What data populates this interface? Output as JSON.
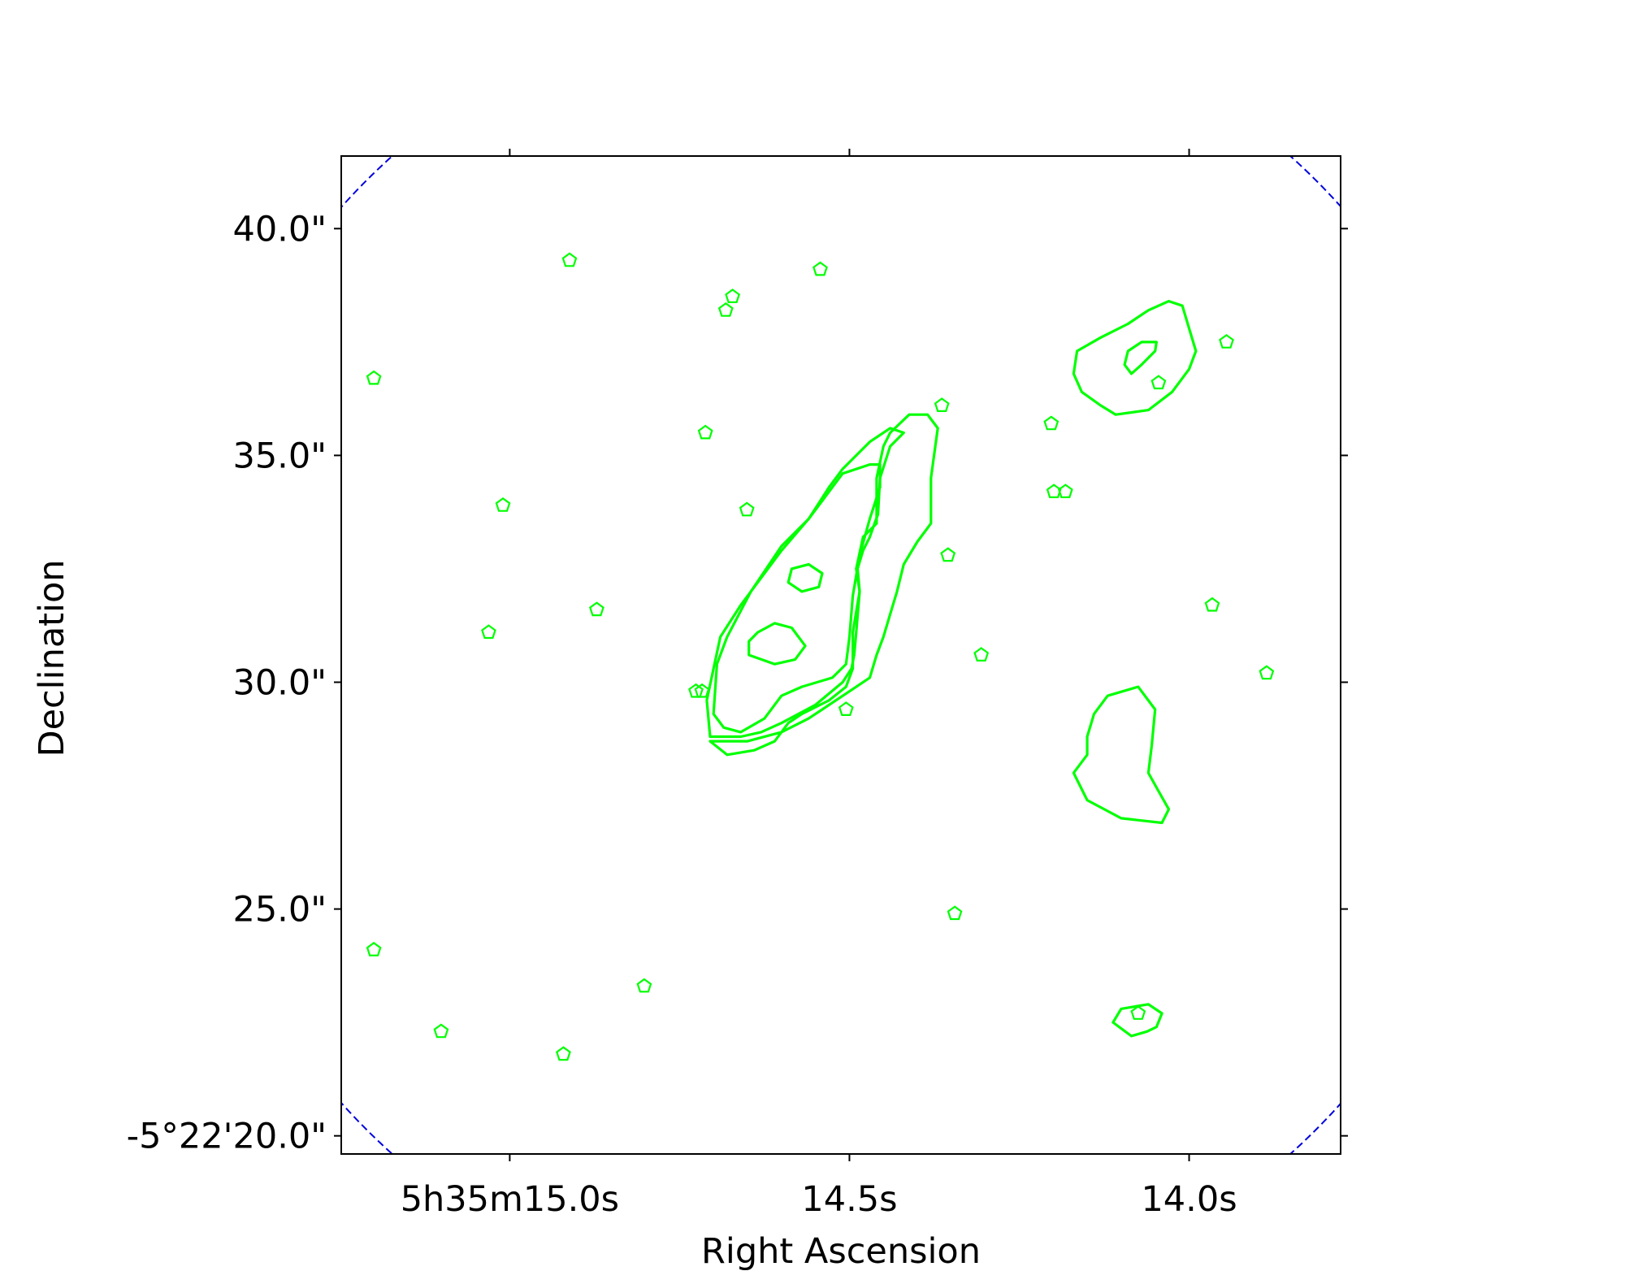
{
  "chart_data": {
    "type": "scatter",
    "xlabel": "Right Ascension",
    "ylabel": "Declination",
    "x_unit": "seconds of right ascension (5h35m + value)",
    "y_unit": "arcsec below -5°22'00\" (declination = -5°22' - value)",
    "xlim": [
      15.248,
      13.777
    ],
    "ylim": [
      41.6,
      19.6
    ],
    "grid": false,
    "x_ticks": [
      {
        "value": 15.0,
        "text": "5h35m15.0s"
      },
      {
        "value": 14.5,
        "text": "14.5s"
      },
      {
        "value": 14.0,
        "text": "14.0s"
      }
    ],
    "y_ticks": [
      {
        "value": 20.0,
        "text": "-5°22'20.0\""
      },
      {
        "value": 25.0,
        "text": "25.0\""
      },
      {
        "value": 30.0,
        "text": "30.0\""
      },
      {
        "value": 35.0,
        "text": "35.0\""
      },
      {
        "value": 40.0,
        "text": "40.0\""
      }
    ],
    "colors": {
      "markers": "#00ff00",
      "contours": "#00ff00",
      "field_circle": "#0000dd",
      "axes": "#000000"
    },
    "field_of_view": {
      "shape": "circle",
      "style": "dashed",
      "center": [
        14.512,
        30.6
      ],
      "radius_arcsec": 14.8
    },
    "markers": {
      "shape": "pentagon",
      "points": [
        [
          14.921,
          21.8
        ],
        [
          15.101,
          22.3
        ],
        [
          14.802,
          23.3
        ],
        [
          15.2,
          24.1
        ],
        [
          14.345,
          24.9
        ],
        [
          14.075,
          22.7
        ],
        [
          14.505,
          29.4
        ],
        [
          14.726,
          29.8
        ],
        [
          14.717,
          29.8
        ],
        [
          14.306,
          30.6
        ],
        [
          13.886,
          30.2
        ],
        [
          15.031,
          31.1
        ],
        [
          14.872,
          31.6
        ],
        [
          13.966,
          31.7
        ],
        [
          14.355,
          32.8
        ],
        [
          15.01,
          33.9
        ],
        [
          14.651,
          33.8
        ],
        [
          14.199,
          34.2
        ],
        [
          14.182,
          34.2
        ],
        [
          14.712,
          35.5
        ],
        [
          14.203,
          35.7
        ],
        [
          14.364,
          36.1
        ],
        [
          15.2,
          36.7
        ],
        [
          14.045,
          36.6
        ],
        [
          13.945,
          37.5
        ],
        [
          14.682,
          38.2
        ],
        [
          14.672,
          38.5
        ],
        [
          14.543,
          39.1
        ],
        [
          14.912,
          39.3
        ]
      ]
    },
    "contours": [
      {
        "name": "",
        "points": [
          [
            14.705,
            28.7
          ],
          [
            14.68,
            28.4
          ],
          [
            14.64,
            28.5
          ],
          [
            14.61,
            28.7
          ],
          [
            14.59,
            29.1
          ],
          [
            14.57,
            29.3
          ],
          [
            14.53,
            29.6
          ],
          [
            14.505,
            29.9
          ],
          [
            14.495,
            30.3
          ],
          [
            14.495,
            31.1
          ],
          [
            14.485,
            32.0
          ],
          [
            14.49,
            32.5
          ],
          [
            14.48,
            33.2
          ],
          [
            14.46,
            33.5
          ],
          [
            14.46,
            34.5
          ],
          [
            14.45,
            35.2
          ],
          [
            14.44,
            35.5
          ],
          [
            14.412,
            35.9
          ],
          [
            14.385,
            35.9
          ],
          [
            14.37,
            35.6
          ],
          [
            14.38,
            34.5
          ],
          [
            14.38,
            33.5
          ],
          [
            14.4,
            33.1
          ],
          [
            14.42,
            32.6
          ],
          [
            14.43,
            32.0
          ],
          [
            14.44,
            31.5
          ],
          [
            14.45,
            31.0
          ],
          [
            14.46,
            30.6
          ],
          [
            14.47,
            30.1
          ],
          [
            14.5,
            29.8
          ],
          [
            14.56,
            29.2
          ],
          [
            14.6,
            28.9
          ],
          [
            14.65,
            28.7
          ],
          [
            14.705,
            28.7
          ]
        ]
      },
      {
        "name": "",
        "points": [
          [
            14.705,
            28.8
          ],
          [
            14.71,
            29.6
          ],
          [
            14.7,
            30.3
          ],
          [
            14.69,
            31.0
          ],
          [
            14.66,
            31.7
          ],
          [
            14.63,
            32.3
          ],
          [
            14.6,
            32.9
          ],
          [
            14.56,
            33.6
          ],
          [
            14.53,
            34.3
          ],
          [
            14.51,
            34.7
          ],
          [
            14.47,
            35.3
          ],
          [
            14.44,
            35.6
          ],
          [
            14.42,
            35.5
          ],
          [
            14.44,
            35.2
          ],
          [
            14.455,
            34.5
          ],
          [
            14.458,
            33.7
          ],
          [
            14.463,
            33.5
          ],
          [
            14.47,
            33.2
          ],
          [
            14.48,
            32.9
          ],
          [
            14.488,
            32.5
          ],
          [
            14.485,
            32.0
          ],
          [
            14.49,
            31.1
          ],
          [
            14.493,
            30.6
          ],
          [
            14.497,
            30.3
          ],
          [
            14.51,
            30.0
          ],
          [
            14.55,
            29.5
          ],
          [
            14.6,
            29.1
          ],
          [
            14.63,
            28.9
          ],
          [
            14.66,
            28.8
          ],
          [
            14.705,
            28.8
          ]
        ]
      },
      {
        "name": "",
        "points": [
          [
            14.7,
            29.3
          ],
          [
            14.685,
            29.0
          ],
          [
            14.66,
            28.9
          ],
          [
            14.625,
            29.2
          ],
          [
            14.6,
            29.7
          ],
          [
            14.57,
            29.9
          ],
          [
            14.525,
            30.1
          ],
          [
            14.505,
            30.4
          ],
          [
            14.5,
            31.0
          ],
          [
            14.495,
            31.9
          ],
          [
            14.485,
            32.8
          ],
          [
            14.47,
            33.6
          ],
          [
            14.455,
            34.3
          ],
          [
            14.455,
            34.8
          ],
          [
            14.47,
            34.8
          ],
          [
            14.51,
            34.6
          ],
          [
            14.56,
            33.6
          ],
          [
            14.6,
            33.0
          ],
          [
            14.645,
            32.0
          ],
          [
            14.68,
            31.0
          ],
          [
            14.695,
            30.4
          ],
          [
            14.7,
            29.3
          ]
        ]
      },
      {
        "name": "",
        "points": [
          [
            14.648,
            30.6
          ],
          [
            14.61,
            30.4
          ],
          [
            14.58,
            30.5
          ],
          [
            14.565,
            30.8
          ],
          [
            14.585,
            31.2
          ],
          [
            14.61,
            31.3
          ],
          [
            14.635,
            31.1
          ],
          [
            14.648,
            30.9
          ],
          [
            14.648,
            30.6
          ]
        ]
      },
      {
        "name": "",
        "points": [
          [
            14.57,
            32.0
          ],
          [
            14.545,
            32.1
          ],
          [
            14.54,
            32.4
          ],
          [
            14.56,
            32.6
          ],
          [
            14.585,
            32.5
          ],
          [
            14.59,
            32.2
          ],
          [
            14.57,
            32.0
          ]
        ]
      },
      {
        "name": "",
        "points": [
          [
            14.062,
            22.3
          ],
          [
            14.085,
            22.2
          ],
          [
            14.112,
            22.5
          ],
          [
            14.1,
            22.8
          ],
          [
            14.06,
            22.9
          ],
          [
            14.04,
            22.7
          ],
          [
            14.048,
            22.4
          ],
          [
            14.062,
            22.3
          ]
        ]
      },
      {
        "name": "",
        "points": [
          [
            14.17,
            28.0
          ],
          [
            14.15,
            27.4
          ],
          [
            14.1,
            27.0
          ],
          [
            14.04,
            26.9
          ],
          [
            14.03,
            27.2
          ],
          [
            14.045,
            27.6
          ],
          [
            14.06,
            28.0
          ],
          [
            14.055,
            28.6
          ],
          [
            14.05,
            29.4
          ],
          [
            14.075,
            29.9
          ],
          [
            14.12,
            29.7
          ],
          [
            14.14,
            29.3
          ],
          [
            14.15,
            28.8
          ],
          [
            14.15,
            28.4
          ],
          [
            14.17,
            28.0
          ]
        ]
      },
      {
        "name": "",
        "points": [
          [
            14.108,
            35.9
          ],
          [
            14.06,
            36.0
          ],
          [
            14.025,
            36.4
          ],
          [
            14.0,
            36.9
          ],
          [
            13.99,
            37.3
          ],
          [
            14.0,
            37.8
          ],
          [
            14.01,
            38.3
          ],
          [
            14.03,
            38.4
          ],
          [
            14.06,
            38.2
          ],
          [
            14.09,
            37.9
          ],
          [
            14.13,
            37.6
          ],
          [
            14.165,
            37.3
          ],
          [
            14.17,
            36.8
          ],
          [
            14.158,
            36.4
          ],
          [
            14.13,
            36.1
          ],
          [
            14.108,
            35.9
          ]
        ]
      },
      {
        "name": "",
        "points": [
          [
            14.085,
            36.8
          ],
          [
            14.07,
            37.0
          ],
          [
            14.05,
            37.3
          ],
          [
            14.048,
            37.5
          ],
          [
            14.07,
            37.5
          ],
          [
            14.09,
            37.3
          ],
          [
            14.095,
            37.0
          ],
          [
            14.085,
            36.8
          ]
        ]
      }
    ]
  }
}
